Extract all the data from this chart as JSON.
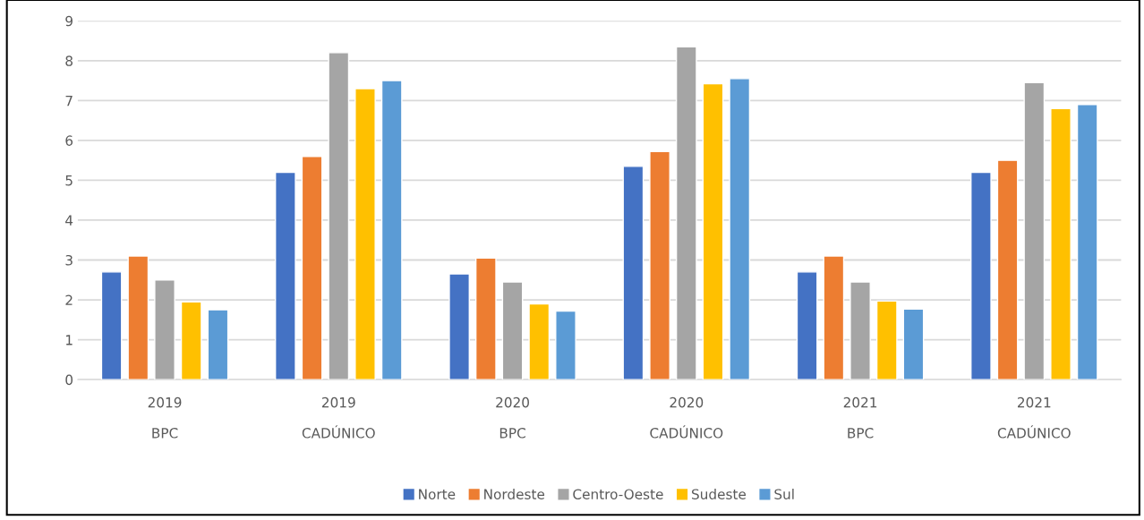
{
  "chart_data": {
    "type": "bar",
    "categories": [
      "2019\nBPC",
      "2019\nCADÚNICO",
      "2020\nBPC",
      "2020\nCADÚNICO",
      "2021\nBPC",
      "2021\nCADÚNICO"
    ],
    "series": [
      {
        "name": "Norte",
        "color": "#4472c4",
        "values": [
          2.7,
          5.2,
          2.65,
          5.35,
          2.7,
          5.2
        ]
      },
      {
        "name": "Nordeste",
        "color": "#ed7d31",
        "values": [
          3.1,
          5.6,
          3.05,
          5.72,
          3.1,
          5.5
        ]
      },
      {
        "name": "Centro-Oeste",
        "color": "#a5a5a5",
        "values": [
          2.5,
          8.2,
          2.45,
          8.35,
          2.45,
          7.45
        ]
      },
      {
        "name": "Sudeste",
        "color": "#ffc000",
        "values": [
          1.95,
          7.3,
          1.9,
          7.42,
          1.97,
          6.8
        ]
      },
      {
        "name": "Sul",
        "color": "#5b9bd5",
        "values": [
          1.75,
          7.5,
          1.72,
          7.55,
          1.77,
          6.9
        ]
      }
    ],
    "ylim": [
      0,
      9
    ],
    "yticks": [
      0,
      1,
      2,
      3,
      4,
      5,
      6,
      7,
      8,
      9
    ],
    "grid": "y",
    "legend": "bottom"
  }
}
